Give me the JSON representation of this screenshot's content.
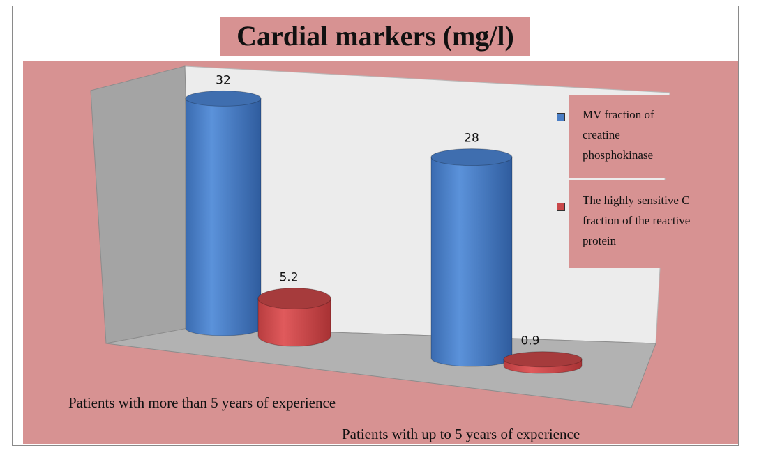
{
  "chart_data": {
    "type": "bar",
    "style": "3d-cylinder",
    "title": "Cardial markers (mg/l)",
    "categories": [
      "Patients with more than 5 years of experience",
      "Patients with up to 5 years of experience"
    ],
    "series": [
      {
        "name": "MV fraction of creatine phosphokinase",
        "values": [
          32,
          28
        ],
        "labels": [
          "32",
          "28"
        ],
        "color": "#4a7ec5"
      },
      {
        "name": "The highly sensitive C fraction of the reactive protein",
        "values": [
          5.2,
          0.9
        ],
        "labels": [
          "5.2",
          "0.9"
        ],
        "color": "#c9484a"
      }
    ],
    "legend_placement": "right",
    "grid": false,
    "background_color": "#d79292"
  }
}
